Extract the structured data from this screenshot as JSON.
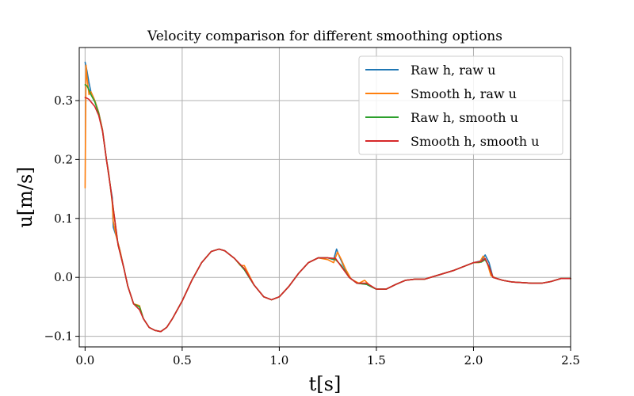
{
  "chart_data": {
    "type": "line",
    "title": "Velocity comparison for different smoothing options",
    "xlabel": "t[s]",
    "ylabel": "u[m/s]",
    "xlim": [
      -0.03,
      2.5
    ],
    "ylim": [
      -0.118,
      0.39
    ],
    "xticks": [
      0.0,
      0.5,
      1.0,
      1.5,
      2.0,
      2.5
    ],
    "xtick_labels": [
      "0.0",
      "0.5",
      "1.0",
      "1.5",
      "2.0",
      "2.5"
    ],
    "yticks": [
      -0.1,
      0.0,
      0.1,
      0.2,
      0.3
    ],
    "ytick_labels": [
      "−0.1",
      "0.0",
      "0.1",
      "0.2",
      "0.3"
    ],
    "grid": true,
    "legend_position": "top-right",
    "series": [
      {
        "name": "Raw h, raw u",
        "color": "#1f77b4",
        "points": [
          [
            0.0,
            0.365
          ],
          [
            0.01,
            0.35
          ],
          [
            0.02,
            0.33
          ],
          [
            0.03,
            0.315
          ],
          [
            0.05,
            0.3
          ],
          [
            0.07,
            0.28
          ],
          [
            0.09,
            0.25
          ],
          [
            0.11,
            0.2
          ],
          [
            0.12,
            0.18
          ],
          [
            0.13,
            0.155
          ],
          [
            0.14,
            0.135
          ],
          [
            0.145,
            0.085
          ],
          [
            0.16,
            0.07
          ],
          [
            0.18,
            0.045
          ],
          [
            0.2,
            0.015
          ],
          [
            0.22,
            -0.015
          ],
          [
            0.25,
            -0.045
          ],
          [
            0.28,
            -0.05
          ],
          [
            0.3,
            -0.07
          ],
          [
            0.33,
            -0.085
          ],
          [
            0.36,
            -0.09
          ],
          [
            0.39,
            -0.092
          ],
          [
            0.42,
            -0.085
          ],
          [
            0.45,
            -0.07
          ],
          [
            0.5,
            -0.04
          ],
          [
            0.55,
            -0.005
          ],
          [
            0.6,
            0.025
          ],
          [
            0.65,
            0.044
          ],
          [
            0.69,
            0.048
          ],
          [
            0.72,
            0.045
          ],
          [
            0.77,
            0.032
          ],
          [
            0.82,
            0.013
          ],
          [
            0.87,
            -0.013
          ],
          [
            0.92,
            -0.033
          ],
          [
            0.96,
            -0.038
          ],
          [
            1.0,
            -0.033
          ],
          [
            1.05,
            -0.015
          ],
          [
            1.1,
            0.007
          ],
          [
            1.15,
            0.025
          ],
          [
            1.2,
            0.033
          ],
          [
            1.25,
            0.033
          ],
          [
            1.28,
            0.03
          ],
          [
            1.295,
            0.048
          ],
          [
            1.31,
            0.035
          ],
          [
            1.33,
            0.02
          ],
          [
            1.36,
            0.0
          ],
          [
            1.4,
            -0.01
          ],
          [
            1.45,
            -0.012
          ],
          [
            1.5,
            -0.02
          ],
          [
            1.55,
            -0.02
          ],
          [
            1.6,
            -0.012
          ],
          [
            1.65,
            -0.005
          ],
          [
            1.7,
            -0.003
          ],
          [
            1.75,
            -0.003
          ],
          [
            1.8,
            0.002
          ],
          [
            1.9,
            0.012
          ],
          [
            2.0,
            0.025
          ],
          [
            2.04,
            0.028
          ],
          [
            2.06,
            0.038
          ],
          [
            2.08,
            0.025
          ],
          [
            2.1,
            0.0
          ],
          [
            2.15,
            -0.005
          ],
          [
            2.2,
            -0.008
          ],
          [
            2.3,
            -0.01
          ],
          [
            2.35,
            -0.01
          ],
          [
            2.4,
            -0.007
          ],
          [
            2.45,
            -0.002
          ],
          [
            2.5,
            -0.002
          ]
        ]
      },
      {
        "name": "Smooth h, raw u",
        "color": "#ff7f0e",
        "points": [
          [
            0.0,
            0.152
          ],
          [
            0.005,
            0.36
          ],
          [
            0.01,
            0.34
          ],
          [
            0.02,
            0.31
          ],
          [
            0.03,
            0.315
          ],
          [
            0.05,
            0.3
          ],
          [
            0.07,
            0.28
          ],
          [
            0.09,
            0.25
          ],
          [
            0.11,
            0.2
          ],
          [
            0.12,
            0.18
          ],
          [
            0.13,
            0.155
          ],
          [
            0.14,
            0.125
          ],
          [
            0.145,
            0.095
          ],
          [
            0.16,
            0.07
          ],
          [
            0.18,
            0.045
          ],
          [
            0.2,
            0.015
          ],
          [
            0.22,
            -0.015
          ],
          [
            0.25,
            -0.045
          ],
          [
            0.28,
            -0.048
          ],
          [
            0.3,
            -0.07
          ],
          [
            0.33,
            -0.085
          ],
          [
            0.36,
            -0.09
          ],
          [
            0.39,
            -0.092
          ],
          [
            0.42,
            -0.085
          ],
          [
            0.45,
            -0.07
          ],
          [
            0.5,
            -0.04
          ],
          [
            0.55,
            -0.005
          ],
          [
            0.6,
            0.025
          ],
          [
            0.65,
            0.044
          ],
          [
            0.69,
            0.048
          ],
          [
            0.72,
            0.045
          ],
          [
            0.77,
            0.032
          ],
          [
            0.8,
            0.02
          ],
          [
            0.82,
            0.02
          ],
          [
            0.87,
            -0.013
          ],
          [
            0.92,
            -0.033
          ],
          [
            0.96,
            -0.038
          ],
          [
            1.0,
            -0.033
          ],
          [
            1.05,
            -0.015
          ],
          [
            1.1,
            0.007
          ],
          [
            1.15,
            0.025
          ],
          [
            1.2,
            0.033
          ],
          [
            1.25,
            0.03
          ],
          [
            1.28,
            0.025
          ],
          [
            1.3,
            0.043
          ],
          [
            1.32,
            0.03
          ],
          [
            1.34,
            0.015
          ],
          [
            1.37,
            -0.003
          ],
          [
            1.41,
            -0.01
          ],
          [
            1.44,
            -0.005
          ],
          [
            1.47,
            -0.015
          ],
          [
            1.5,
            -0.02
          ],
          [
            1.55,
            -0.02
          ],
          [
            1.6,
            -0.012
          ],
          [
            1.65,
            -0.005
          ],
          [
            1.7,
            -0.003
          ],
          [
            1.75,
            -0.003
          ],
          [
            1.8,
            0.002
          ],
          [
            1.9,
            0.012
          ],
          [
            2.0,
            0.025
          ],
          [
            2.03,
            0.025
          ],
          [
            2.05,
            0.036
          ],
          [
            2.07,
            0.025
          ],
          [
            2.09,
            0.003
          ],
          [
            2.12,
            -0.002
          ],
          [
            2.15,
            -0.005
          ],
          [
            2.2,
            -0.008
          ],
          [
            2.3,
            -0.01
          ],
          [
            2.35,
            -0.01
          ],
          [
            2.4,
            -0.007
          ],
          [
            2.45,
            -0.002
          ],
          [
            2.5,
            -0.002
          ]
        ]
      },
      {
        "name": "Raw h, smooth u",
        "color": "#2ca02c",
        "points": [
          [
            0.0,
            0.327
          ],
          [
            0.01,
            0.325
          ],
          [
            0.02,
            0.318
          ],
          [
            0.03,
            0.31
          ],
          [
            0.05,
            0.298
          ],
          [
            0.07,
            0.278
          ],
          [
            0.09,
            0.248
          ],
          [
            0.11,
            0.2
          ],
          [
            0.13,
            0.155
          ],
          [
            0.15,
            0.105
          ],
          [
            0.17,
            0.055
          ],
          [
            0.2,
            0.015
          ],
          [
            0.22,
            -0.015
          ],
          [
            0.25,
            -0.045
          ],
          [
            0.28,
            -0.05
          ],
          [
            0.3,
            -0.07
          ],
          [
            0.33,
            -0.085
          ],
          [
            0.36,
            -0.09
          ],
          [
            0.39,
            -0.092
          ],
          [
            0.42,
            -0.085
          ],
          [
            0.45,
            -0.07
          ],
          [
            0.5,
            -0.04
          ],
          [
            0.55,
            -0.005
          ],
          [
            0.6,
            0.025
          ],
          [
            0.65,
            0.044
          ],
          [
            0.69,
            0.048
          ],
          [
            0.72,
            0.045
          ],
          [
            0.77,
            0.032
          ],
          [
            0.82,
            0.013
          ],
          [
            0.87,
            -0.013
          ],
          [
            0.92,
            -0.033
          ],
          [
            0.96,
            -0.038
          ],
          [
            1.0,
            -0.033
          ],
          [
            1.05,
            -0.015
          ],
          [
            1.1,
            0.007
          ],
          [
            1.15,
            0.025
          ],
          [
            1.2,
            0.033
          ],
          [
            1.25,
            0.033
          ],
          [
            1.29,
            0.03
          ],
          [
            1.32,
            0.02
          ],
          [
            1.36,
            0.0
          ],
          [
            1.4,
            -0.01
          ],
          [
            1.45,
            -0.012
          ],
          [
            1.5,
            -0.02
          ],
          [
            1.55,
            -0.02
          ],
          [
            1.6,
            -0.012
          ],
          [
            1.65,
            -0.005
          ],
          [
            1.7,
            -0.003
          ],
          [
            1.75,
            -0.003
          ],
          [
            1.8,
            0.002
          ],
          [
            1.9,
            0.012
          ],
          [
            2.0,
            0.025
          ],
          [
            2.04,
            0.026
          ],
          [
            2.06,
            0.03
          ],
          [
            2.08,
            0.018
          ],
          [
            2.1,
            0.0
          ],
          [
            2.15,
            -0.005
          ],
          [
            2.2,
            -0.008
          ],
          [
            2.3,
            -0.01
          ],
          [
            2.35,
            -0.01
          ],
          [
            2.4,
            -0.007
          ],
          [
            2.45,
            -0.002
          ],
          [
            2.5,
            -0.002
          ]
        ]
      },
      {
        "name": "Smooth h, smooth u",
        "color": "#d62728",
        "points": [
          [
            0.0,
            0.305
          ],
          [
            0.01,
            0.304
          ],
          [
            0.02,
            0.302
          ],
          [
            0.03,
            0.298
          ],
          [
            0.05,
            0.29
          ],
          [
            0.07,
            0.275
          ],
          [
            0.09,
            0.248
          ],
          [
            0.11,
            0.2
          ],
          [
            0.13,
            0.155
          ],
          [
            0.15,
            0.105
          ],
          [
            0.17,
            0.055
          ],
          [
            0.2,
            0.015
          ],
          [
            0.22,
            -0.015
          ],
          [
            0.25,
            -0.045
          ],
          [
            0.28,
            -0.055
          ],
          [
            0.3,
            -0.07
          ],
          [
            0.33,
            -0.085
          ],
          [
            0.36,
            -0.09
          ],
          [
            0.39,
            -0.092
          ],
          [
            0.42,
            -0.085
          ],
          [
            0.45,
            -0.07
          ],
          [
            0.5,
            -0.04
          ],
          [
            0.55,
            -0.005
          ],
          [
            0.6,
            0.025
          ],
          [
            0.65,
            0.044
          ],
          [
            0.69,
            0.048
          ],
          [
            0.72,
            0.045
          ],
          [
            0.77,
            0.032
          ],
          [
            0.82,
            0.015
          ],
          [
            0.87,
            -0.013
          ],
          [
            0.92,
            -0.033
          ],
          [
            0.96,
            -0.038
          ],
          [
            1.0,
            -0.033
          ],
          [
            1.05,
            -0.015
          ],
          [
            1.1,
            0.007
          ],
          [
            1.15,
            0.025
          ],
          [
            1.2,
            0.033
          ],
          [
            1.25,
            0.033
          ],
          [
            1.29,
            0.032
          ],
          [
            1.32,
            0.018
          ],
          [
            1.36,
            0.0
          ],
          [
            1.4,
            -0.01
          ],
          [
            1.45,
            -0.01
          ],
          [
            1.5,
            -0.02
          ],
          [
            1.55,
            -0.02
          ],
          [
            1.6,
            -0.012
          ],
          [
            1.65,
            -0.005
          ],
          [
            1.7,
            -0.003
          ],
          [
            1.75,
            -0.003
          ],
          [
            1.8,
            0.002
          ],
          [
            1.9,
            0.012
          ],
          [
            2.0,
            0.025
          ],
          [
            2.04,
            0.027
          ],
          [
            2.06,
            0.032
          ],
          [
            2.08,
            0.018
          ],
          [
            2.1,
            0.0
          ],
          [
            2.15,
            -0.005
          ],
          [
            2.2,
            -0.008
          ],
          [
            2.3,
            -0.01
          ],
          [
            2.35,
            -0.01
          ],
          [
            2.4,
            -0.007
          ],
          [
            2.45,
            -0.002
          ],
          [
            2.5,
            -0.002
          ]
        ]
      }
    ]
  }
}
